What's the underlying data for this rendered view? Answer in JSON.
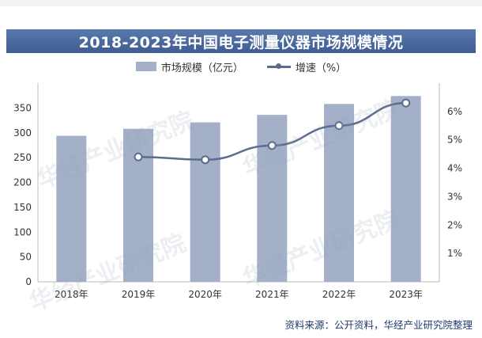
{
  "title": "2018-2023年中国电子测量仪器市场规模情况",
  "legend": {
    "bar_label": "市场规模（亿元）",
    "line_label": "增速（%）"
  },
  "source": "资料来源：公开资料，华经产业研究院整理",
  "watermark": "华经产业研究院",
  "colors": {
    "bar": "#a3b0c8",
    "line": "#5b6c8d",
    "title_bg": "#4a6aa0",
    "marker_fill": "#ffffff"
  },
  "chart_data": {
    "type": "bar+line",
    "categories": [
      "2018年",
      "2019年",
      "2020年",
      "2021年",
      "2022年",
      "2023年"
    ],
    "series": [
      {
        "name": "市场规模（亿元）",
        "type": "bar",
        "axis": "left",
        "values": [
          294,
          308,
          321,
          336,
          358,
          374
        ]
      },
      {
        "name": "增速（%）",
        "type": "line",
        "axis": "right",
        "values": [
          null,
          4.4,
          4.3,
          4.8,
          5.5,
          6.3
        ]
      }
    ],
    "y_left": {
      "min": 0,
      "max": 400,
      "ticks": [
        0,
        50,
        100,
        150,
        200,
        250,
        300,
        350
      ]
    },
    "y_right": {
      "min": 0,
      "max": 7,
      "ticks": [
        "1%",
        "2%",
        "3%",
        "4%",
        "5%",
        "6%"
      ],
      "tick_values": [
        1,
        2,
        3,
        4,
        5,
        6
      ]
    },
    "grid": false,
    "legend_position": "top"
  }
}
